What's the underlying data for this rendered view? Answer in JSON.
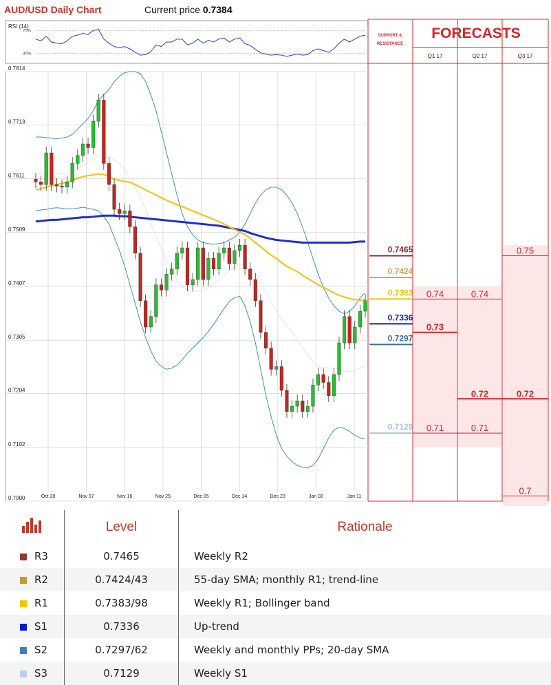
{
  "header": {
    "title": "AUD/USD Daily Chart",
    "price_label": "Current price",
    "price_value": "0.7384",
    "rsi_label": "RSI (14)",
    "rsi_levels": [
      "70%",
      "30%"
    ],
    "sr_label": [
      "SUPPORT &",
      "RESISTANCE"
    ],
    "forecasts_title": "FORECASTS",
    "quarters": [
      "Q1 17",
      "Q2 17",
      "Q3 17"
    ]
  },
  "chart_data": {
    "type": "candlestick",
    "title": "AUD/USD Daily Chart",
    "ylim": [
      0.7,
      0.7814
    ],
    "y_ticks": [
      "0.7814",
      "0.7713",
      "0.7611",
      "0.7509",
      "0.7407",
      "0.7305",
      "0.7204",
      "0.7102",
      "0.7000"
    ],
    "x_ticks": [
      "Oct 28",
      "Nov 07",
      "Nov 16",
      "Nov 25",
      "Dec 05",
      "Dec 14",
      "Dec 23",
      "Jan 02",
      "Jan 11"
    ],
    "close": [
      0.7605,
      0.76,
      0.766,
      0.76,
      0.7597,
      0.7595,
      0.7605,
      0.764,
      0.7655,
      0.7677,
      0.767,
      0.772,
      0.776,
      0.764,
      0.76,
      0.7553,
      0.7545,
      0.755,
      0.752,
      0.747,
      0.738,
      0.733,
      0.735,
      0.741,
      0.74,
      0.743,
      0.744,
      0.747,
      0.748,
      0.741,
      0.742,
      0.748,
      0.742,
      0.746,
      0.744,
      0.747,
      0.748,
      0.745,
      0.7475,
      0.7485,
      0.744,
      0.742,
      0.738,
      0.732,
      0.729,
      0.725,
      0.7255,
      0.721,
      0.717,
      0.718,
      0.719,
      0.717,
      0.718,
      0.722,
      0.724,
      0.7225,
      0.72,
      0.724,
      0.73,
      0.735,
      0.73,
      0.733,
      0.736,
      0.738
    ],
    "sma_55": [
      0.759,
      0.7592,
      0.7595,
      0.7598,
      0.76,
      0.7602,
      0.7605,
      0.7608,
      0.7612,
      0.7615,
      0.7617,
      0.7618,
      0.762,
      0.7619,
      0.7616,
      0.761,
      0.7608,
      0.7606,
      0.7604,
      0.76,
      0.7595,
      0.759,
      0.7585,
      0.758,
      0.7575,
      0.757,
      0.7566,
      0.7562,
      0.7558,
      0.7554,
      0.755,
      0.7546,
      0.7542,
      0.7538,
      0.7534,
      0.753,
      0.7525,
      0.752,
      0.7515,
      0.751,
      0.7505,
      0.7498,
      0.749,
      0.7482,
      0.7474,
      0.7466,
      0.746,
      0.7452,
      0.7445,
      0.744,
      0.7435,
      0.7428,
      0.7422,
      0.7416,
      0.741,
      0.7405,
      0.74,
      0.7395,
      0.739,
      0.7387,
      0.7384,
      0.7382,
      0.7381,
      0.7382
    ],
    "sma_200": [
      0.753,
      0.7531,
      0.7532,
      0.7533,
      0.7533,
      0.7534,
      0.7535,
      0.7536,
      0.7537,
      0.7538,
      0.7538,
      0.7539,
      0.754,
      0.7541,
      0.7541,
      0.7541,
      0.754,
      0.754,
      0.7539,
      0.7538,
      0.7537,
      0.7536,
      0.7535,
      0.7534,
      0.7533,
      0.7532,
      0.7531,
      0.753,
      0.7529,
      0.7528,
      0.7527,
      0.7526,
      0.7525,
      0.7524,
      0.7523,
      0.7522,
      0.752,
      0.7518,
      0.7516,
      0.7514,
      0.7512,
      0.7508,
      0.7505,
      0.7502,
      0.7499,
      0.7497,
      0.7495,
      0.7494,
      0.7493,
      0.7492,
      0.7491,
      0.749,
      0.749,
      0.749,
      0.749,
      0.749,
      0.749,
      0.749,
      0.749,
      0.749,
      0.749,
      0.7491,
      0.7492,
      0.7492
    ],
    "bb_upper": [
      0.769,
      0.769,
      0.7689,
      0.7688,
      0.7687,
      0.7688,
      0.769,
      0.7695,
      0.7705,
      0.7715,
      0.7725,
      0.774,
      0.776,
      0.777,
      0.778,
      0.7795,
      0.7805,
      0.7812,
      0.7814,
      0.7814,
      0.781,
      0.7795,
      0.777,
      0.774,
      0.77,
      0.766,
      0.762,
      0.758,
      0.7545,
      0.752,
      0.7505,
      0.7495,
      0.749,
      0.7488,
      0.7487,
      0.7488,
      0.749,
      0.7495,
      0.75,
      0.751,
      0.7525,
      0.7545,
      0.7565,
      0.758,
      0.759,
      0.7595,
      0.7595,
      0.759,
      0.758,
      0.7565,
      0.7545,
      0.752,
      0.749,
      0.746,
      0.743,
      0.7405,
      0.7385,
      0.737,
      0.736,
      0.7355,
      0.736,
      0.737,
      0.7385,
      0.7395
    ],
    "bb_lower": [
      0.755,
      0.7552,
      0.7553,
      0.7555,
      0.7556,
      0.7555,
      0.7554,
      0.7554,
      0.7555,
      0.7557,
      0.7555,
      0.7553,
      0.755,
      0.754,
      0.7525,
      0.75,
      0.7475,
      0.7445,
      0.741,
      0.7375,
      0.734,
      0.731,
      0.7285,
      0.7265,
      0.7255,
      0.725,
      0.7252,
      0.7258,
      0.7268,
      0.728,
      0.729,
      0.73,
      0.731,
      0.7322,
      0.7335,
      0.735,
      0.7365,
      0.7378,
      0.7386,
      0.7388,
      0.737,
      0.734,
      0.73,
      0.725,
      0.72,
      0.716,
      0.7125,
      0.71,
      0.7085,
      0.7075,
      0.7068,
      0.7064,
      0.7063,
      0.7068,
      0.708,
      0.71,
      0.712,
      0.7135,
      0.714,
      0.7138,
      0.7132,
      0.7125,
      0.712,
      0.7118
    ],
    "rsi": [
      55,
      52,
      60,
      50,
      48,
      47,
      52,
      60,
      62,
      65,
      63,
      70,
      72,
      55,
      48,
      42,
      40,
      42,
      38,
      32,
      27,
      28,
      33,
      45,
      42,
      50,
      50,
      55,
      55,
      45,
      48,
      55,
      48,
      53,
      50,
      55,
      57,
      50,
      55,
      57,
      47,
      44,
      37,
      31,
      29,
      27,
      28,
      27,
      25,
      27,
      29,
      27,
      28,
      35,
      38,
      35,
      32,
      38,
      48,
      55,
      50,
      55,
      60,
      62
    ],
    "support_resistance": [
      {
        "value": "0.7465",
        "color": "#8b2e2e"
      },
      {
        "value": "0.7424",
        "color": "#d4a45a"
      },
      {
        "value": "0.7383",
        "color": "#f0c400"
      },
      {
        "value": "0.7336",
        "color": "#0f1fc8"
      },
      {
        "value": "0.7297",
        "color": "#3a6d97"
      },
      {
        "value": "0.7129",
        "color": "#a9c4dd"
      }
    ],
    "forecasts": [
      {
        "quarter": "Q1 17",
        "labels": [
          {
            "value": "0.74",
            "y": 0.7383,
            "bold": false
          },
          {
            "value": "0.73",
            "y": 0.732,
            "bold": true
          },
          {
            "value": "0.71",
            "y": 0.7129,
            "bold": false
          }
        ],
        "band": [
          0.7102,
          0.7407
        ]
      },
      {
        "quarter": "Q2 17",
        "labels": [
          {
            "value": "0.74",
            "y": 0.7383,
            "bold": false
          },
          {
            "value": "0.72",
            "y": 0.7194,
            "bold": true
          },
          {
            "value": "0.71",
            "y": 0.7129,
            "bold": false
          }
        ],
        "band": [
          0.7102,
          0.7407
        ]
      },
      {
        "quarter": "Q3 17",
        "labels": [
          {
            "value": "0.75",
            "y": 0.7465,
            "bold": false
          },
          {
            "value": "0.72",
            "y": 0.7194,
            "bold": true
          },
          {
            "value": "0.7",
            "y": 0.701,
            "bold": false
          }
        ],
        "band": [
          0.699,
          0.7485
        ]
      }
    ]
  },
  "table": {
    "headers": [
      "Level",
      "Rationale"
    ],
    "rows": [
      {
        "name": "R3",
        "level": "0.7465",
        "rationale": "Weekly R2",
        "color": "#8b3a34"
      },
      {
        "name": "R2",
        "level": "0.7424/43",
        "rationale": "55-day SMA; monthly R1; trend-line",
        "color": "#c89a2a"
      },
      {
        "name": "R1",
        "level": "0.7383/98",
        "rationale": "Weekly R1; Bollinger band",
        "color": "#f5c400"
      },
      {
        "name": "S1",
        "level": "0.7336",
        "rationale": "Up-trend",
        "color": "#0a19c9"
      },
      {
        "name": "S2",
        "level": "0.7297/62",
        "rationale": "Weekly and monthly PPs; 20-day SMA",
        "color": "#3f7fbf"
      },
      {
        "name": "S3",
        "level": "0.7129",
        "rationale": "Weekly S1",
        "color": "#b9cfe6"
      }
    ]
  }
}
